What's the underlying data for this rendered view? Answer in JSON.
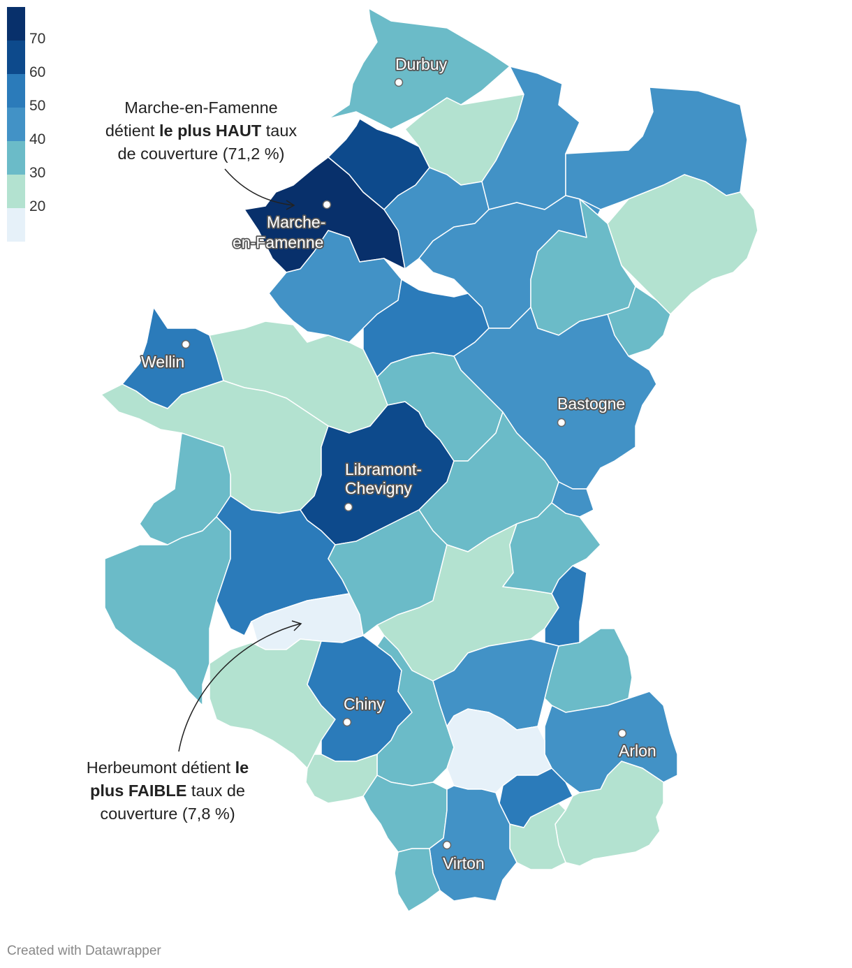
{
  "legend": {
    "colors": [
      "#08306b",
      "#0d4a8c",
      "#2b7bba",
      "#4292c6",
      "#6bbbc8",
      "#b3e2d0",
      "#e6f1f9"
    ],
    "labels": [
      "70",
      "60",
      "50",
      "40",
      "30",
      "20"
    ]
  },
  "colors": {
    "c70": "#08306b",
    "c60": "#0d4a8c",
    "c50": "#2b7bba",
    "c40": "#4292c6",
    "c30": "#6bbbc8",
    "c20": "#b3e2d0",
    "c10": "#e6f1f9"
  },
  "cities": {
    "durbuy": "Durbuy",
    "marche_line1": "Marche-",
    "marche_line2": "en-Famenne",
    "wellin": "Wellin",
    "bastogne": "Bastogne",
    "libramont_line1": "Libramont-",
    "libramont_line2": "Chevigny",
    "chiny": "Chiny",
    "arlon": "Arlon",
    "virton": "Virton"
  },
  "annotations": {
    "high": {
      "line1": "Marche-en-Famenne",
      "line2_pre": "détient ",
      "line2_bold": "le plus HAUT",
      "line2_post": " taux",
      "line3": "de couverture (71,2 %)"
    },
    "low": {
      "line1_pre": "Herbeumont détient ",
      "line1_bold": "le",
      "line2_bold": "plus FAIBLE",
      "line2_post": " taux de",
      "line3": "couverture (7,8 %)"
    }
  },
  "credit": "Created with Datawrapper"
}
